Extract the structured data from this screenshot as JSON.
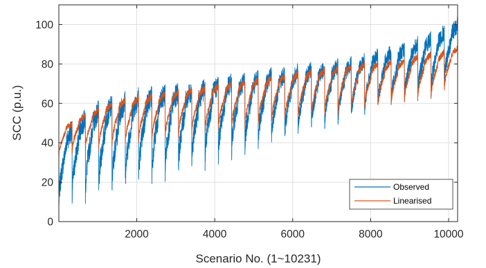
{
  "chart_data": {
    "type": "line",
    "xlabel": "Scenario No. (1~10231)",
    "ylabel": "SCC (p.u.)",
    "xlim": [
      1,
      10231
    ],
    "ylim": [
      0,
      110
    ],
    "xticks": [
      2000,
      4000,
      6000,
      8000,
      10000
    ],
    "yticks": [
      0,
      20,
      40,
      60,
      80,
      100
    ],
    "grid": true,
    "legend_position": "bottom-right",
    "cycle_length": 341,
    "n_cycles": 30,
    "series": [
      {
        "name": "Observed",
        "color": "#0072BD",
        "cycle_lows": [
          8,
          12,
          14,
          15,
          17,
          19,
          21,
          23,
          25,
          27,
          29,
          31,
          33,
          35,
          37,
          39,
          41,
          43,
          45,
          47,
          49,
          51,
          53,
          55,
          57,
          59,
          61,
          63,
          65,
          69
        ],
        "cycle_highs": [
          46,
          52,
          56,
          59,
          61,
          63,
          64,
          65,
          66,
          67,
          68,
          70,
          71,
          72,
          73,
          74,
          75,
          76,
          77,
          78,
          79,
          80,
          82,
          84,
          86,
          88,
          90,
          93,
          96,
          100
        ]
      },
      {
        "name": "Linearised",
        "color": "#D95319",
        "cycle_lows": [
          33,
          35,
          36,
          37,
          38,
          39,
          40,
          41,
          42,
          43,
          44,
          45,
          46,
          47,
          48,
          49,
          50,
          51,
          52,
          53,
          54,
          55,
          56,
          57,
          58,
          59,
          60,
          61,
          62,
          67
        ],
        "cycle_highs": [
          50,
          54,
          57,
          60,
          62,
          63,
          64,
          65,
          66,
          67,
          68,
          69,
          70,
          71,
          72,
          73,
          74,
          75,
          76,
          77,
          78,
          79,
          80,
          80,
          81,
          82,
          84,
          85,
          86,
          88
        ]
      }
    ]
  }
}
